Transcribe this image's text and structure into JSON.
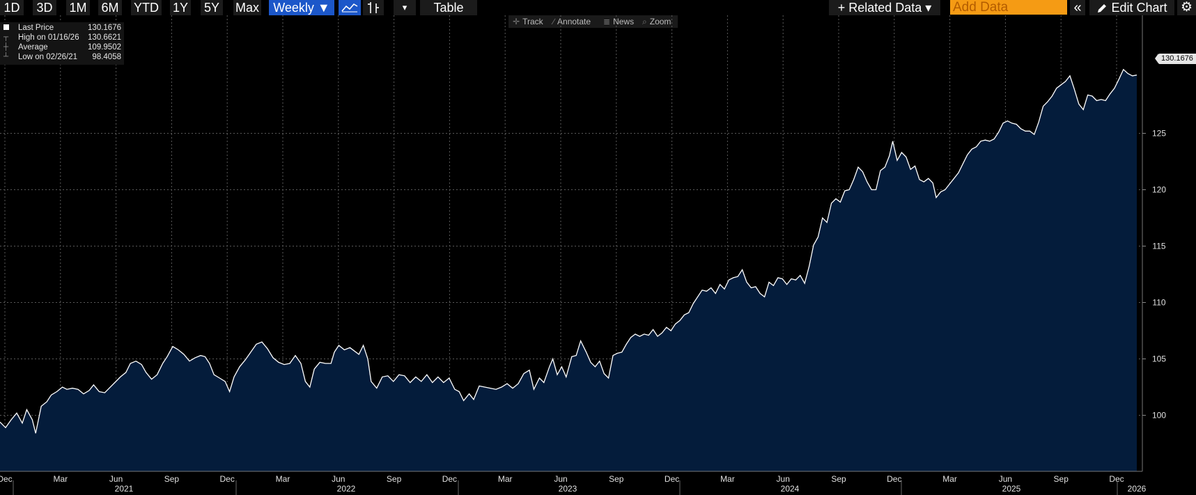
{
  "toolbar": {
    "ranges": [
      "1D",
      "3D",
      "1M",
      "6M",
      "YTD",
      "1Y",
      "5Y",
      "Max"
    ],
    "frequency_label": "Weekly ▼",
    "table_label": "Table",
    "related_data_label": "+ Related Data ▾",
    "add_data_placeholder": "Add Data",
    "edit_chart_label": "Edit Chart",
    "collapse_glyph": "«",
    "settings_glyph": "⚙",
    "dropdown_glyph": "▾"
  },
  "mini_toolbar": {
    "track": "Track",
    "annotate": "Annotate",
    "news": "News",
    "zoom": "Zoom"
  },
  "legend": [
    {
      "label": "Last Price",
      "value": "130.1676"
    },
    {
      "label": "High on 01/16/26",
      "value": "130.6621"
    },
    {
      "label": "Average",
      "value": "109.9502"
    },
    {
      "label": "Low on 02/26/21",
      "value": "98.4058"
    }
  ],
  "price_tag": "130.1676",
  "colors": {
    "fill": "#041c3b",
    "line": "#ffffff",
    "grid": "#5a5a5a",
    "active_button": "#1c57c9",
    "add_data_bg": "#f59b14"
  },
  "chart_data": {
    "type": "area",
    "series": [
      {
        "name": "Last Price",
        "frequency": "weekly"
      }
    ],
    "x_start": "2020-12",
    "x_end": "2026-01",
    "x_tick_labels": [
      "Dec",
      "Mar",
      "Jun",
      "Sep",
      "Dec",
      "Mar",
      "Jun",
      "Sep",
      "Dec",
      "Mar",
      "Jun",
      "Sep",
      "Dec",
      "Mar",
      "Jun",
      "Sep",
      "Dec",
      "Mar",
      "Jun",
      "Sep",
      "Dec"
    ],
    "year_labels": [
      "2021",
      "2022",
      "2023",
      "2024",
      "2025",
      "2026"
    ],
    "y_ticks": [
      100,
      105,
      110,
      115,
      120,
      125
    ],
    "ylim": [
      94.8,
      133.2
    ],
    "grid": true,
    "legend_position": "top-left",
    "points": [
      [
        0.0,
        99.4
      ],
      [
        0.5,
        98.9
      ],
      [
        1.0,
        99.6
      ],
      [
        1.5,
        100.2
      ],
      [
        2.0,
        99.3
      ],
      [
        2.4,
        100.5
      ],
      [
        2.9,
        99.6
      ],
      [
        3.2,
        98.4
      ],
      [
        3.7,
        100.8
      ],
      [
        4.2,
        101.2
      ],
      [
        4.6,
        101.8
      ],
      [
        5.1,
        102.1
      ],
      [
        5.6,
        102.5
      ],
      [
        6.0,
        102.3
      ],
      [
        6.5,
        102.4
      ],
      [
        7.0,
        102.3
      ],
      [
        7.5,
        101.9
      ],
      [
        8.0,
        102.2
      ],
      [
        8.4,
        102.7
      ],
      [
        8.9,
        102.1
      ],
      [
        9.4,
        102.0
      ],
      [
        9.8,
        102.4
      ],
      [
        10.3,
        102.9
      ],
      [
        10.8,
        103.4
      ],
      [
        11.3,
        103.8
      ],
      [
        11.7,
        104.6
      ],
      [
        12.2,
        104.8
      ],
      [
        12.7,
        104.5
      ],
      [
        13.1,
        103.8
      ],
      [
        13.6,
        103.2
      ],
      [
        14.1,
        103.6
      ],
      [
        14.6,
        104.6
      ],
      [
        15.0,
        105.2
      ],
      [
        15.5,
        106.1
      ],
      [
        16.0,
        105.8
      ],
      [
        16.5,
        105.4
      ],
      [
        17.0,
        104.8
      ],
      [
        17.5,
        105.1
      ],
      [
        18.0,
        105.3
      ],
      [
        18.4,
        105.2
      ],
      [
        18.8,
        104.6
      ],
      [
        19.2,
        103.6
      ],
      [
        19.7,
        103.3
      ],
      [
        20.2,
        103.0
      ],
      [
        20.6,
        102.1
      ],
      [
        21.0,
        103.4
      ],
      [
        21.5,
        104.3
      ],
      [
        22.0,
        104.9
      ],
      [
        22.5,
        105.6
      ],
      [
        23.0,
        106.3
      ],
      [
        23.5,
        106.5
      ],
      [
        24.0,
        105.9
      ],
      [
        24.5,
        105.1
      ],
      [
        25.0,
        104.7
      ],
      [
        25.5,
        104.5
      ],
      [
        26.0,
        104.6
      ],
      [
        26.5,
        105.3
      ],
      [
        27.0,
        104.6
      ],
      [
        27.4,
        103.0
      ],
      [
        27.8,
        102.5
      ],
      [
        28.2,
        104.1
      ],
      [
        28.7,
        104.7
      ],
      [
        29.2,
        104.6
      ],
      [
        29.7,
        104.6
      ],
      [
        30.0,
        105.6
      ],
      [
        30.4,
        106.2
      ],
      [
        30.9,
        105.8
      ],
      [
        31.4,
        106.0
      ],
      [
        31.8,
        105.7
      ],
      [
        32.2,
        105.4
      ],
      [
        32.6,
        106.2
      ],
      [
        33.0,
        105.0
      ],
      [
        33.3,
        103.0
      ],
      [
        33.8,
        102.4
      ],
      [
        34.3,
        103.4
      ],
      [
        34.8,
        103.5
      ],
      [
        35.3,
        103.0
      ],
      [
        35.8,
        103.6
      ],
      [
        36.3,
        103.5
      ],
      [
        36.8,
        102.9
      ],
      [
        37.3,
        103.4
      ],
      [
        37.8,
        103.0
      ],
      [
        38.3,
        103.6
      ],
      [
        38.8,
        102.9
      ],
      [
        39.3,
        103.4
      ],
      [
        39.8,
        102.9
      ],
      [
        40.3,
        103.3
      ],
      [
        40.8,
        102.3
      ],
      [
        41.2,
        102.1
      ],
      [
        41.6,
        101.3
      ],
      [
        42.1,
        101.9
      ],
      [
        42.5,
        101.4
      ],
      [
        43.0,
        102.6
      ],
      [
        43.5,
        102.5
      ],
      [
        44.0,
        102.4
      ],
      [
        44.5,
        102.3
      ],
      [
        45.0,
        102.5
      ],
      [
        45.5,
        102.8
      ],
      [
        46.0,
        102.4
      ],
      [
        46.5,
        102.8
      ],
      [
        47.0,
        103.7
      ],
      [
        47.5,
        104.0
      ],
      [
        47.9,
        102.3
      ],
      [
        48.4,
        103.3
      ],
      [
        48.8,
        102.9
      ],
      [
        49.3,
        104.3
      ],
      [
        49.6,
        105.0
      ],
      [
        50.0,
        103.6
      ],
      [
        50.4,
        104.3
      ],
      [
        50.8,
        103.4
      ],
      [
        51.3,
        105.2
      ],
      [
        51.7,
        105.3
      ],
      [
        52.1,
        106.6
      ],
      [
        52.6,
        105.6
      ],
      [
        53.0,
        104.7
      ],
      [
        53.4,
        104.3
      ],
      [
        53.8,
        104.8
      ],
      [
        54.2,
        103.7
      ],
      [
        54.6,
        103.3
      ],
      [
        55.0,
        105.3
      ],
      [
        55.4,
        105.5
      ],
      [
        55.8,
        105.6
      ],
      [
        56.2,
        106.3
      ],
      [
        56.6,
        106.9
      ],
      [
        57.0,
        107.2
      ],
      [
        57.4,
        107.0
      ],
      [
        57.8,
        107.2
      ],
      [
        58.2,
        107.1
      ],
      [
        58.6,
        107.6
      ],
      [
        59.0,
        107.0
      ],
      [
        59.4,
        107.3
      ],
      [
        59.8,
        107.8
      ],
      [
        60.2,
        107.5
      ],
      [
        60.6,
        108.1
      ],
      [
        61.0,
        108.4
      ],
      [
        61.4,
        108.9
      ],
      [
        61.8,
        109.1
      ],
      [
        62.2,
        109.9
      ],
      [
        62.6,
        110.5
      ],
      [
        63.0,
        111.1
      ],
      [
        63.4,
        111.0
      ],
      [
        63.8,
        111.3
      ],
      [
        64.2,
        110.8
      ],
      [
        64.6,
        111.6
      ],
      [
        65.0,
        111.2
      ],
      [
        65.4,
        112.0
      ],
      [
        65.8,
        112.2
      ],
      [
        66.2,
        112.3
      ],
      [
        66.6,
        112.9
      ],
      [
        67.0,
        111.8
      ],
      [
        67.4,
        111.3
      ],
      [
        67.8,
        111.4
      ],
      [
        68.2,
        110.8
      ],
      [
        68.6,
        110.5
      ],
      [
        69.0,
        111.8
      ],
      [
        69.4,
        111.5
      ],
      [
        69.8,
        112.2
      ],
      [
        70.2,
        112.1
      ],
      [
        70.6,
        111.6
      ],
      [
        71.0,
        112.1
      ],
      [
        71.4,
        112.0
      ],
      [
        71.8,
        112.4
      ],
      [
        72.2,
        111.7
      ],
      [
        72.6,
        113.2
      ],
      [
        73.0,
        115.1
      ],
      [
        73.4,
        115.8
      ],
      [
        73.8,
        117.5
      ],
      [
        74.2,
        117.1
      ],
      [
        74.6,
        118.8
      ],
      [
        75.0,
        119.2
      ],
      [
        75.4,
        118.9
      ],
      [
        75.8,
        119.9
      ],
      [
        76.2,
        120.0
      ],
      [
        76.6,
        120.9
      ],
      [
        77.0,
        122.0
      ],
      [
        77.4,
        121.6
      ],
      [
        77.8,
        120.7
      ],
      [
        78.2,
        120.0
      ],
      [
        78.6,
        120.0
      ],
      [
        79.0,
        121.7
      ],
      [
        79.4,
        122.0
      ],
      [
        79.8,
        123.0
      ],
      [
        80.1,
        124.3
      ],
      [
        80.5,
        122.6
      ],
      [
        80.9,
        123.3
      ],
      [
        81.3,
        122.9
      ],
      [
        81.7,
        121.8
      ],
      [
        82.1,
        122.1
      ],
      [
        82.5,
        120.9
      ],
      [
        82.9,
        120.7
      ],
      [
        83.3,
        121.0
      ],
      [
        83.7,
        120.6
      ],
      [
        84.0,
        119.3
      ],
      [
        84.4,
        119.8
      ],
      [
        84.8,
        120.0
      ],
      [
        85.2,
        120.5
      ],
      [
        85.6,
        121.0
      ],
      [
        86.0,
        121.5
      ],
      [
        86.4,
        122.3
      ],
      [
        86.8,
        123.1
      ],
      [
        87.2,
        123.6
      ],
      [
        87.6,
        123.8
      ],
      [
        88.0,
        124.3
      ],
      [
        88.4,
        124.4
      ],
      [
        88.8,
        124.3
      ],
      [
        89.2,
        124.5
      ],
      [
        89.6,
        125.1
      ],
      [
        90.0,
        125.9
      ],
      [
        90.4,
        126.1
      ],
      [
        90.8,
        125.9
      ],
      [
        91.2,
        125.8
      ],
      [
        91.6,
        125.4
      ],
      [
        92.0,
        125.2
      ],
      [
        92.4,
        125.2
      ],
      [
        92.8,
        124.9
      ],
      [
        93.2,
        126.0
      ],
      [
        93.6,
        127.4
      ],
      [
        94.0,
        127.8
      ],
      [
        94.4,
        128.3
      ],
      [
        94.8,
        129.0
      ],
      [
        95.2,
        129.3
      ],
      [
        95.6,
        129.6
      ],
      [
        96.0,
        130.1
      ],
      [
        96.4,
        128.9
      ],
      [
        96.8,
        127.6
      ],
      [
        97.2,
        127.1
      ],
      [
        97.6,
        128.4
      ],
      [
        98.0,
        128.3
      ],
      [
        98.4,
        127.9
      ],
      [
        98.8,
        128.0
      ],
      [
        99.2,
        127.9
      ],
      [
        99.6,
        128.5
      ],
      [
        100.0,
        129.0
      ],
      [
        100.4,
        129.8
      ],
      [
        100.8,
        130.66
      ],
      [
        101.2,
        130.3
      ],
      [
        101.6,
        130.1
      ],
      [
        102.0,
        130.1676
      ]
    ]
  }
}
